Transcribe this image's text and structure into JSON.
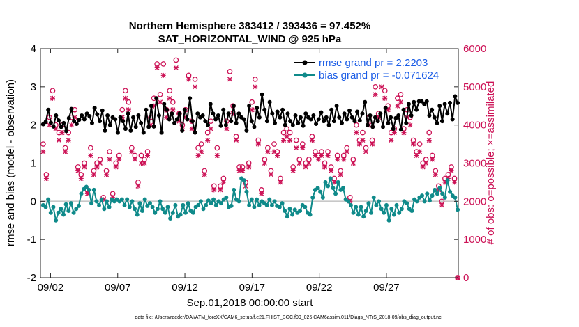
{
  "chart_data": {
    "type": "line",
    "title": "Northern Hemisphere 383412 / 393436 = 97.452%",
    "subtitle": "SAT_HORIZONTAL_WIND @ 925 hPa",
    "xlabel": "Sep.01,2018 00:00:00 start",
    "ylabel_left": "rmse and bias (model - observation)",
    "ylabel_right": "# of obs: o=possible; ×=assimilated",
    "xlim": [
      0.25,
      31.35
    ],
    "ylim_left": [
      -2,
      4
    ],
    "ylim_right": [
      0,
      6000
    ],
    "x_ticks": [
      {
        "x": 1,
        "label": "09/02"
      },
      {
        "x": 6,
        "label": "09/07"
      },
      {
        "x": 11,
        "label": "09/12"
      },
      {
        "x": 16,
        "label": "09/17"
      },
      {
        "x": 21,
        "label": "09/22"
      },
      {
        "x": 26,
        "label": "09/27"
      }
    ],
    "y_ticks_left": [
      "-2",
      "-1",
      "0",
      "1",
      "2",
      "3",
      "4"
    ],
    "y_ticks_right": [
      "0",
      "1000",
      "2000",
      "3000",
      "4000",
      "5000",
      "6000"
    ],
    "grid": false,
    "legend_position": "top-right",
    "footer": "data file: /Users/raeder/DAI/ATM_forcXX/CAM6_setup/f.e21.FHIST_BGC.f09_025.CAM6assim.011/Diags_NTrS_2018-09/obs_diag_output.nc",
    "colors": {
      "rmse": "#000000",
      "bias": "#0f8a8a",
      "obs": "#cc1155",
      "zero_line": "#c8c8c8"
    },
    "series": [
      {
        "name": "rmse",
        "legend": "rmse grand pr = 2.2203",
        "axis": "left",
        "values": [
          2.02,
          2.08,
          2.4,
          2.06,
          1.96,
          2.25,
          2.12,
          1.95,
          2.05,
          1.84,
          2.18,
          2.42,
          2.1,
          2.03,
          2.14,
          2.25,
          2.15,
          2.3,
          2.23,
          2.05,
          2.45,
          2.28,
          2.1,
          2.38,
          1.85,
          2.25,
          2.0,
          2.2,
          2.15,
          1.8,
          2.2,
          2.1,
          1.9,
          2.3,
          1.85,
          2.2,
          1.95,
          2.25,
          2.05,
          1.8,
          2.4,
          1.95,
          2.5,
          1.96,
          2.7,
          2.25,
          1.8,
          2.55,
          2.4,
          2.15,
          2.3,
          2.05,
          2.15,
          2.3,
          1.85,
          2.4,
          2.15,
          2.7,
          2.1,
          1.8,
          2.3,
          2.2,
          2.25,
          2.1,
          2.0,
          2.55,
          2.3,
          2.15,
          2.25,
          1.98,
          2.4,
          2.0,
          2.3,
          2.1,
          2.5,
          2.05,
          2.3,
          2.2,
          2.15,
          1.85,
          2.5,
          2.1,
          1.95,
          2.45,
          2.2,
          2.8,
          2.4,
          2.1,
          2.6,
          2.3,
          2.05,
          2.35,
          2.2,
          2.4,
          2.0,
          2.3,
          2.1,
          2.0,
          2.25,
          2.05,
          2.2,
          1.98,
          2.3,
          2.2,
          2.15,
          2.25,
          2.03,
          2.15,
          2.33,
          2.1,
          2.2,
          2.0,
          2.4,
          2.1,
          2.5,
          2.2,
          2.05,
          2.3,
          2.15,
          2.38,
          2.2,
          2.1,
          2.35,
          2.12,
          2.3,
          2.6,
          2.0,
          2.25,
          1.95,
          2.2,
          2.1,
          2.3,
          1.95,
          2.45,
          2.05,
          2.2,
          1.9,
          2.18,
          2.25,
          1.88,
          2.4,
          2.05,
          2.55,
          2.25,
          2.6,
          2.4,
          2.62,
          2.62,
          2.55,
          2.62,
          2.25,
          2.4,
          2.2,
          2.05,
          2.5,
          2.1,
          2.55,
          2.3,
          2.58,
          2.15,
          2.75,
          2.58
        ]
      },
      {
        "name": "bias",
        "legend": "bias grand pr = -0.071624",
        "axis": "left",
        "values": [
          -0.1,
          -0.15,
          0.05,
          -0.3,
          -0.15,
          -0.5,
          -0.3,
          -0.2,
          -0.35,
          -0.08,
          -0.25,
          -0.05,
          -0.3,
          -0.2,
          -0.12,
          0.2,
          0.32,
          0.38,
          0.3,
          -0.05,
          0.3,
          0.0,
          -0.1,
          0.05,
          -0.2,
          0.0,
          -0.15,
          0.05,
          0.0,
          0.05,
          0.0,
          0.05,
          -0.1,
          0.05,
          -0.15,
          0.0,
          -0.2,
          -0.35,
          -0.05,
          -0.25,
          0.05,
          -0.12,
          -0.05,
          -0.15,
          -0.3,
          -0.2,
          0.0,
          -0.2,
          -0.3,
          -0.15,
          -0.45,
          -0.3,
          -0.1,
          -0.4,
          -0.35,
          -0.1,
          -0.3,
          -0.05,
          -0.25,
          -0.3,
          -0.15,
          -0.1,
          0.0,
          -0.2,
          -0.1,
          0.02,
          -0.05,
          0.05,
          -0.1,
          0.0,
          -0.05,
          0.05,
          0.1,
          -0.15,
          -0.12,
          0.3,
          0.05,
          0.0,
          0.6,
          0.55,
          0.25,
          -0.1,
          0.05,
          -0.15,
          0.05,
          -0.1,
          0.0,
          -0.05,
          -0.1,
          0.05,
          -0.1,
          0.0,
          -0.12,
          -0.15,
          -0.05,
          -0.25,
          -0.4,
          -0.2,
          -0.35,
          -0.22,
          -0.3,
          -0.25,
          -0.1,
          -0.15,
          -0.3,
          -0.35,
          0.1,
          0.3,
          0.35,
          0.25,
          0.1,
          0.5,
          0.4,
          0.6,
          0.35,
          0.2,
          0.5,
          0.3,
          0.35,
          0.05,
          0.0,
          -0.1,
          -0.3,
          -0.15,
          -0.35,
          -0.15,
          -0.4,
          -0.25,
          -0.05,
          -0.3,
          0.1,
          -0.1,
          0.0,
          -0.2,
          -0.3,
          -0.1,
          -0.5,
          -0.2,
          -0.35,
          -0.1,
          -0.3,
          -0.2,
          0.0,
          -0.05,
          -0.2,
          -0.25,
          0.05,
          0.0,
          0.1,
          0.15,
          0.0,
          0.2,
          0.02,
          0.15,
          0.3,
          0.2,
          0.35,
          0.2,
          0.1,
          0.55,
          0.25,
          0.15,
          0.1,
          -0.22
        ]
      },
      {
        "name": "obs_possible",
        "marker": "o",
        "axis": "right",
        "values": [
          3500,
          2700,
          4200,
          4900,
          4000,
          3800,
          4000,
          3400,
          3800,
          4200,
          4400,
          2900,
          2700,
          3000,
          2300,
          3400,
          2800,
          3000,
          3100,
          2100,
          2800,
          3300,
          2200,
          3000,
          3200,
          4400,
          4900,
          4600,
          3400,
          3200,
          2500,
          3200,
          3100,
          3300,
          4200,
          4700,
          5600,
          4800,
          5600,
          4400,
          4900,
          4600,
          5700,
          4300,
          4000,
          4400,
          5300,
          4100,
          5200,
          3400,
          3500,
          2800,
          3800,
          4100,
          2400,
          3400,
          2400,
          2600,
          4100,
          5400,
          4500,
          3700,
          2900,
          2900,
          2500,
          3000,
          4600,
          5200,
          3600,
          2300,
          3100,
          3400,
          2800,
          3500,
          3300,
          2600,
          3800,
          3900,
          3800,
          2900,
          3600,
          3100,
          3500,
          3000,
          3100,
          3700,
          3300,
          3200,
          3300,
          3000,
          3300,
          2900,
          2600,
          3200,
          2800,
          3200,
          3400,
          2100,
          3100,
          4000,
          3600,
          3800,
          3400,
          4200,
          3600,
          5000,
          4300,
          5200,
          4900,
          4500,
          3800,
          3900,
          4700,
          4800,
          3900,
          4400,
          4200,
          3600,
          3300,
          3500,
          3000,
          3100,
          3800,
          3200,
          2800,
          2400,
          2000,
          2600,
          2700,
          2900,
          2600,
          0
        ]
      },
      {
        "name": "obs_assimilated",
        "marker": "x",
        "axis": "right",
        "values": [
          3300,
          2600,
          4000,
          4700,
          3900,
          3600,
          3800,
          3300,
          3600,
          4000,
          4200,
          2800,
          2600,
          2900,
          2200,
          3200,
          2700,
          2900,
          3000,
          2050,
          2700,
          3100,
          2100,
          2900,
          3100,
          4200,
          4700,
          4400,
          3300,
          3100,
          2400,
          3000,
          3000,
          3200,
          4000,
          4500,
          5500,
          4600,
          5300,
          4200,
          4700,
          4400,
          5500,
          4100,
          3900,
          4200,
          5200,
          3900,
          5000,
          3200,
          3300,
          2700,
          3600,
          3900,
          2300,
          3200,
          2300,
          2500,
          3900,
          5200,
          4300,
          3600,
          2800,
          2800,
          2400,
          2900,
          4400,
          5000,
          3500,
          2200,
          3000,
          3300,
          2700,
          3300,
          3200,
          2500,
          3600,
          3700,
          3600,
          2800,
          3400,
          3000,
          3400,
          2900,
          3000,
          3600,
          3200,
          3100,
          3200,
          2900,
          3200,
          2800,
          2500,
          3100,
          2700,
          3100,
          3300,
          2000,
          3000,
          3800,
          3500,
          3600,
          3300,
          4000,
          3500,
          4800,
          4200,
          5000,
          4700,
          4400,
          3600,
          3800,
          4500,
          4600,
          3800,
          4200,
          4000,
          3500,
          3200,
          3300,
          2900,
          3000,
          3600,
          3100,
          2700,
          2300,
          1900,
          2500,
          2600,
          2800,
          2500,
          0
        ]
      }
    ]
  }
}
